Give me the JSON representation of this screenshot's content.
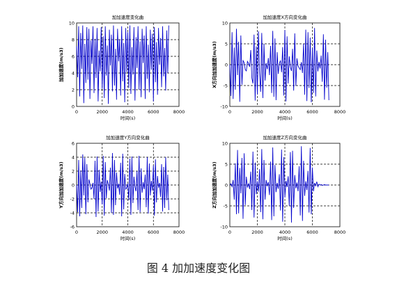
{
  "caption": "图 4  加加速度变化图",
  "chart_data": [
    {
      "type": "line",
      "title": "加加速度变化曲",
      "xlabel": "时间(s)",
      "ylabel": "加加速度(m/s3)",
      "xlim": [
        0,
        8000
      ],
      "ylim": [
        0,
        10
      ],
      "xticks": [
        0,
        2000,
        4000,
        6000,
        8000
      ],
      "yticks": [
        0,
        2,
        4,
        6,
        8,
        10
      ],
      "xtick_labels": [
        "0",
        "2000",
        "4000",
        "6000",
        "8000"
      ],
      "ytick_labels": [
        "0",
        "2",
        "4",
        "6",
        "8",
        "10"
      ],
      "grid": true,
      "color": "#0000cc",
      "series": [
        {
          "x": [
            0,
            80,
            160,
            240,
            320,
            400,
            480,
            560,
            640,
            720,
            800,
            880,
            960,
            1040,
            1120,
            1200,
            1280,
            1360,
            1440,
            1520,
            1600,
            1680,
            1760,
            1840,
            1920,
            2000,
            2080,
            2160,
            2240,
            2320,
            2400,
            2480,
            2560,
            2640,
            2720,
            2800,
            2880,
            2960,
            3040,
            3120,
            3200,
            3280,
            3360,
            3440,
            3520,
            3600,
            3680,
            3760,
            3840,
            3920,
            4000,
            4080,
            4160,
            4240,
            4320,
            4400,
            4480,
            4560,
            4640,
            4720,
            4800,
            4880,
            4960,
            5040,
            5120,
            5200,
            5280,
            5360,
            5440,
            5520,
            5600,
            5680,
            5760,
            5840,
            5920,
            6000,
            6080,
            6160,
            6240,
            6320,
            6400,
            6480,
            6560,
            6640,
            6720,
            6800,
            6880,
            6960,
            7040,
            7120,
            7200
          ],
          "y": [
            7.2,
            3.5,
            9.6,
            1.2,
            8.8,
            4.5,
            9.7,
            0.4,
            7.5,
            2.8,
            9.5,
            3.2,
            9.3,
            0.9,
            7.9,
            5.1,
            9.6,
            1.6,
            8.1,
            3.4,
            9.4,
            0.6,
            6.7,
            4.2,
            9.5,
            2.1,
            8.4,
            1.0,
            9.6,
            3.7,
            7.3,
            0.3,
            9.2,
            4.9,
            8.6,
            1.8,
            9.7,
            2.5,
            6.9,
            0.8,
            9.3,
            5.4,
            8.0,
            1.3,
            9.6,
            3.0,
            7.6,
            0.5,
            9.4,
            4.1,
            8.9,
            2.2,
            9.7,
            1.5,
            7.1,
            3.8,
            9.5,
            0.7,
            8.3,
            4.6,
            9.6,
            2.0,
            7.8,
            1.1,
            9.3,
            5.2,
            8.5,
            0.9,
            9.6,
            3.3,
            7.4,
            1.7,
            9.2,
            4.4,
            8.7,
            0.6,
            9.5,
            2.9,
            7.7,
            1.4,
            9.4,
            5.0,
            8.2,
            2.3,
            9.6,
            3.6,
            7.0,
            1.9,
            9.1,
            4.0,
            9.7
          ]
        }
      ]
    },
    {
      "type": "line",
      "title": "加加速度X方向变化曲",
      "xlabel": "时间(s)",
      "ylabel": "X方向加加速度(m/s3)",
      "xlim": [
        0,
        8000
      ],
      "ylim": [
        -10,
        10
      ],
      "xticks": [
        0,
        2000,
        4000,
        6000,
        8000
      ],
      "yticks": [
        -10,
        -5,
        0,
        5,
        10
      ],
      "xtick_labels": [
        "0",
        "2000",
        "4000",
        "6000",
        "8000"
      ],
      "ytick_labels": [
        "-10",
        "-5",
        "0",
        "5",
        "10"
      ],
      "grid": true,
      "color": "#0000cc",
      "series": [
        {
          "x": [
            0,
            80,
            160,
            240,
            320,
            400,
            480,
            560,
            640,
            720,
            800,
            880,
            960,
            1040,
            1120,
            1200,
            1280,
            1360,
            1440,
            1520,
            1600,
            1680,
            1760,
            1840,
            1920,
            2000,
            2080,
            2160,
            2240,
            2320,
            2400,
            2480,
            2560,
            2640,
            2720,
            2800,
            2880,
            2960,
            3040,
            3120,
            3200,
            3280,
            3360,
            3440,
            3520,
            3600,
            3680,
            3760,
            3840,
            3920,
            4000,
            4080,
            4160,
            4240,
            4320,
            4400,
            4480,
            4560,
            4640,
            4720,
            4800,
            4880,
            4960,
            5040,
            5120,
            5200,
            5280,
            5360,
            5440,
            5520,
            5600,
            5680,
            5760,
            5840,
            5920,
            6000,
            6080,
            6160,
            6240,
            6320,
            6400,
            6480,
            6560,
            6640,
            6720,
            6800,
            6880,
            6960,
            7040,
            7120,
            7200
          ],
          "y": [
            0.0,
            -7.5,
            7.8,
            -8.2,
            4.1,
            -6.0,
            8.6,
            -2.5,
            5.5,
            -8.9,
            7.0,
            -4.8,
            1.0,
            0.5,
            -1.2,
            -1.5,
            0.8,
            0.3,
            -0.5,
            3.5,
            -3.2,
            -4.5,
            7.2,
            -8.6,
            4.4,
            -7.1,
            8.0,
            -2.1,
            -6.5,
            7.6,
            -8.0,
            5.0,
            -3.8,
            0.4,
            -1.1,
            1.6,
            -2.5,
            4.5,
            -6.8,
            8.1,
            -7.7,
            6.3,
            -8.5,
            3.0,
            -2.2,
            0.3,
            1.0,
            -1.8,
            4.2,
            -7.4,
            8.3,
            -8.8,
            6.8,
            -4.5,
            2.0,
            -0.6,
            -1.5,
            3.8,
            -6.2,
            7.5,
            -5.1,
            1.5,
            -0.3,
            -0.8,
            -1.2,
            0.6,
            -2.0,
            5.0,
            -7.2,
            8.4,
            -8.7,
            7.8,
            -5.6,
            6.5,
            -9.0,
            4.0,
            -6.8,
            8.8,
            -7.6,
            3.4,
            -1.6,
            0.7,
            -0.9,
            2.2,
            -4.1,
            7.3,
            -8.4,
            6.0,
            -5.5,
            3.0,
            -8.5
          ]
        }
      ]
    },
    {
      "type": "line",
      "title": "加加速度Y方向变化曲",
      "xlabel": "时间(s)",
      "ylabel": "Y方向加加速度(m/s3)",
      "xlim": [
        0,
        8000
      ],
      "ylim": [
        -6,
        6
      ],
      "xticks": [
        0,
        2000,
        4000,
        6000,
        8000
      ],
      "yticks": [
        -6,
        -4,
        -2,
        0,
        2,
        4,
        6
      ],
      "xtick_labels": [
        "0",
        "2000",
        "4000",
        "6000",
        "8000"
      ],
      "ytick_labels": [
        "-6",
        "-4",
        "-2",
        "0",
        "2",
        "4",
        "6"
      ],
      "grid": true,
      "color": "#0000cc",
      "series": [
        {
          "x": [
            0,
            80,
            160,
            240,
            320,
            400,
            480,
            560,
            640,
            720,
            800,
            880,
            960,
            1040,
            1120,
            1200,
            1280,
            1360,
            1440,
            1520,
            1600,
            1680,
            1760,
            1840,
            1920,
            2000,
            2080,
            2160,
            2240,
            2320,
            2400,
            2480,
            2560,
            2640,
            2720,
            2800,
            2880,
            2960,
            3040,
            3120,
            3200,
            3280,
            3360,
            3440,
            3520,
            3600,
            3680,
            3760,
            3840,
            3920,
            4000,
            4080,
            4160,
            4240,
            4320,
            4400,
            4480,
            4560,
            4640,
            4720,
            4800,
            4880,
            4960,
            5040,
            5120,
            5200,
            5280,
            5360,
            5440,
            5520,
            5600,
            5680,
            5760,
            5840,
            5920,
            6000,
            6080,
            6160,
            6240,
            6320,
            6400,
            6480,
            6560,
            6640,
            6720,
            6800,
            6880,
            6960,
            7040,
            7120,
            7200
          ],
          "y": [
            0.0,
            -3.9,
            3.6,
            -4.5,
            2.1,
            -3.3,
            4.4,
            -1.5,
            3.9,
            -4.2,
            3.0,
            -2.5,
            0.8,
            0.2,
            -0.6,
            -0.4,
            0.3,
            -2.0,
            3.5,
            -4.6,
            4.1,
            -3.8,
            2.2,
            -1.0,
            0.5,
            -2.8,
            4.2,
            -4.4,
            3.3,
            -1.9,
            0.7,
            0.1,
            -0.8,
            2.5,
            -4.0,
            4.6,
            -4.3,
            3.6,
            -2.9,
            1.8,
            -0.5,
            0.2,
            -1.4,
            3.2,
            -4.5,
            4.5,
            -3.5,
            1.6,
            -0.6,
            -0.4,
            0.2,
            -2.2,
            3.8,
            -4.3,
            4.1,
            -2.6,
            1.2,
            -0.3,
            -0.9,
            2.0,
            -3.6,
            4.2,
            -3.9,
            2.4,
            -1.1,
            0.4,
            -0.6,
            1.5,
            -3.2,
            4.0,
            -4.1,
            3.1,
            -1.5,
            0.6,
            -0.8,
            2.8,
            -4.4,
            3.7,
            -2.5,
            1.3,
            -0.4,
            0.3,
            -1.7,
            3.0,
            -3.8,
            2.6,
            -3.3,
            4.0,
            -2.2,
            1.5,
            -3.6
          ]
        }
      ]
    },
    {
      "type": "line",
      "title": "加加速度Z方向变化曲",
      "xlabel": "时间(s)",
      "ylabel": "Z方向加加速度(m/s3)",
      "xlim": [
        0,
        8000
      ],
      "ylim": [
        -10,
        10
      ],
      "xticks": [
        0,
        2000,
        4000,
        6000,
        8000
      ],
      "yticks": [
        -10,
        -5,
        0,
        5,
        10
      ],
      "xtick_labels": [
        "0",
        "2000",
        "4000",
        "6000",
        "8000"
      ],
      "ytick_labels": [
        "-10",
        "-5",
        "0",
        "5",
        "10"
      ],
      "grid": true,
      "color": "#0000cc",
      "series": [
        {
          "x": [
            0,
            80,
            160,
            240,
            320,
            400,
            480,
            560,
            640,
            720,
            800,
            880,
            960,
            1040,
            1120,
            1200,
            1280,
            1360,
            1440,
            1520,
            1600,
            1680,
            1760,
            1840,
            1920,
            2000,
            2080,
            2160,
            2240,
            2320,
            2400,
            2480,
            2560,
            2640,
            2720,
            2800,
            2880,
            2960,
            3040,
            3120,
            3200,
            3280,
            3360,
            3440,
            3520,
            3600,
            3680,
            3760,
            3840,
            3920,
            4000,
            4080,
            4160,
            4240,
            4320,
            4400,
            4480,
            4560,
            4640,
            4720,
            4800,
            4880,
            4960,
            5040,
            5120,
            5200,
            5280,
            5360,
            5440,
            5520,
            5600,
            5680,
            5760,
            5840,
            5920,
            6000,
            6080,
            6160,
            6240,
            6320,
            6400,
            6480,
            6560,
            6640,
            6720,
            6800,
            6880,
            6960,
            7040,
            7120,
            7200
          ],
          "y": [
            0.0,
            0.3,
            -0.4,
            1.2,
            -3.5,
            5.2,
            -7.0,
            8.4,
            -6.8,
            4.1,
            -2.0,
            6.5,
            -8.1,
            7.6,
            -4.8,
            2.0,
            -0.6,
            0.4,
            -1.0,
            3.2,
            -6.0,
            8.0,
            -7.8,
            5.4,
            -2.2,
            0.9,
            -1.6,
            3.8,
            -6.5,
            8.6,
            -8.2,
            6.0,
            -3.5,
            1.2,
            -0.3,
            0.7,
            -2.4,
            5.6,
            -8.4,
            9.0,
            -7.5,
            4.8,
            -1.7,
            0.5,
            -0.9,
            2.6,
            -6.1,
            8.5,
            -8.8,
            6.7,
            -3.0,
            1.0,
            -0.5,
            2.1,
            -5.0,
            7.9,
            -9.0,
            8.2,
            -5.5,
            2.4,
            -0.8,
            0.6,
            -1.5,
            4.5,
            -7.3,
            9.3,
            -8.6,
            5.8,
            -2.6,
            0.9,
            -1.2,
            3.4,
            -6.6,
            8.9,
            -7.0,
            4.2,
            -1.5,
            0.5,
            -0.2,
            0.8,
            -0.4,
            0.2,
            0.0,
            0.1,
            -0.1,
            0.0,
            0.1,
            0.0,
            0.0,
            0.0,
            0.0
          ]
        }
      ]
    }
  ]
}
